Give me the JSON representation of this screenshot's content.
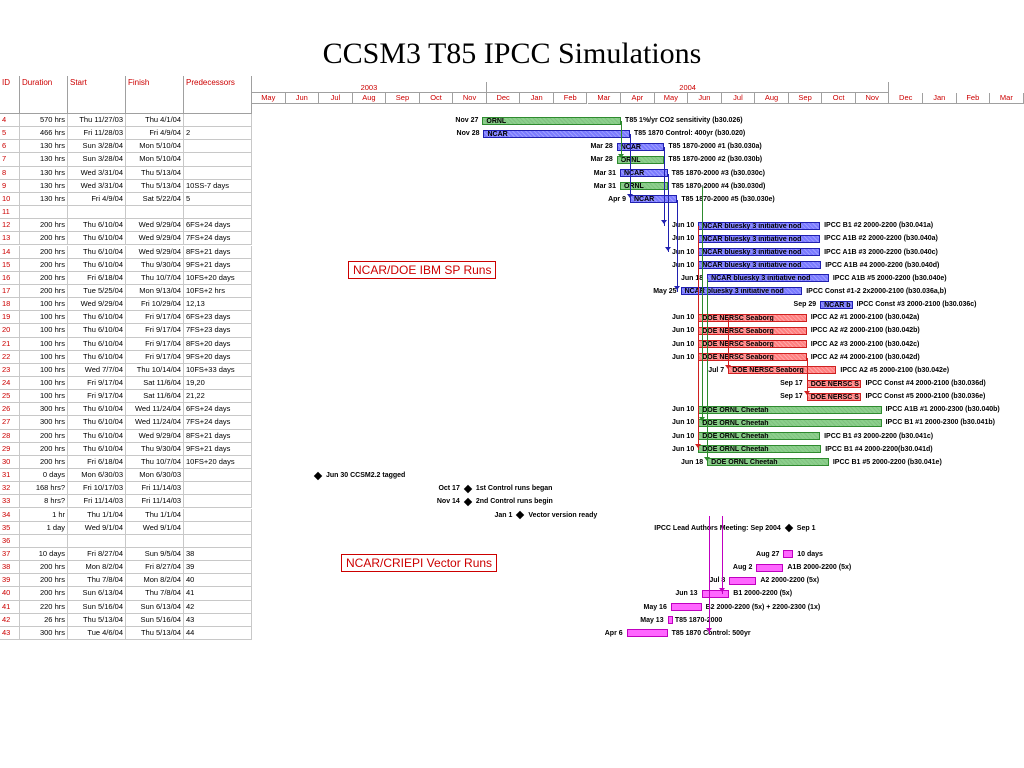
{
  "title": "CCSM3 T85 IPCC Simulations",
  "table": {
    "headers": [
      "ID",
      "Duration",
      "Start",
      "Finish",
      "Predecessors"
    ],
    "rows": [
      {
        "id": "4",
        "dur": "570 hrs",
        "start": "Thu 11/27/03",
        "finish": "Thu 4/1/04",
        "pred": ""
      },
      {
        "id": "5",
        "dur": "466 hrs",
        "start": "Fri 11/28/03",
        "finish": "Fri 4/9/04",
        "pred": "2"
      },
      {
        "id": "6",
        "dur": "130 hrs",
        "start": "Sun 3/28/04",
        "finish": "Mon 5/10/04",
        "pred": ""
      },
      {
        "id": "7",
        "dur": "130 hrs",
        "start": "Sun 3/28/04",
        "finish": "Mon 5/10/04",
        "pred": ""
      },
      {
        "id": "8",
        "dur": "130 hrs",
        "start": "Wed 3/31/04",
        "finish": "Thu 5/13/04",
        "pred": ""
      },
      {
        "id": "9",
        "dur": "130 hrs",
        "start": "Wed 3/31/04",
        "finish": "Thu 5/13/04",
        "pred": "10SS-7 days"
      },
      {
        "id": "10",
        "dur": "130 hrs",
        "start": "Fri 4/9/04",
        "finish": "Sat 5/22/04",
        "pred": "5"
      },
      {
        "id": "11",
        "dur": "",
        "start": "",
        "finish": "",
        "pred": ""
      },
      {
        "id": "12",
        "dur": "200 hrs",
        "start": "Thu 6/10/04",
        "finish": "Wed 9/29/04",
        "pred": "6FS+24 days"
      },
      {
        "id": "13",
        "dur": "200 hrs",
        "start": "Thu 6/10/04",
        "finish": "Wed 9/29/04",
        "pred": "7FS+24 days"
      },
      {
        "id": "14",
        "dur": "200 hrs",
        "start": "Thu 6/10/04",
        "finish": "Wed 9/29/04",
        "pred": "8FS+21 days"
      },
      {
        "id": "15",
        "dur": "200 hrs",
        "start": "Thu 6/10/04",
        "finish": "Thu 9/30/04",
        "pred": "9FS+21 days"
      },
      {
        "id": "16",
        "dur": "200 hrs",
        "start": "Fri 6/18/04",
        "finish": "Thu 10/7/04",
        "pred": "10FS+20 days"
      },
      {
        "id": "17",
        "dur": "200 hrs",
        "start": "Tue 5/25/04",
        "finish": "Mon 9/13/04",
        "pred": "10FS+2 hrs"
      },
      {
        "id": "18",
        "dur": "100 hrs",
        "start": "Wed 9/29/04",
        "finish": "Fri 10/29/04",
        "pred": "12,13"
      },
      {
        "id": "19",
        "dur": "100 hrs",
        "start": "Thu 6/10/04",
        "finish": "Fri 9/17/04",
        "pred": "6FS+23 days"
      },
      {
        "id": "20",
        "dur": "100 hrs",
        "start": "Thu 6/10/04",
        "finish": "Fri 9/17/04",
        "pred": "7FS+23 days"
      },
      {
        "id": "21",
        "dur": "100 hrs",
        "start": "Thu 6/10/04",
        "finish": "Fri 9/17/04",
        "pred": "8FS+20 days"
      },
      {
        "id": "22",
        "dur": "100 hrs",
        "start": "Thu 6/10/04",
        "finish": "Fri 9/17/04",
        "pred": "9FS+20 days"
      },
      {
        "id": "23",
        "dur": "100 hrs",
        "start": "Wed 7/7/04",
        "finish": "Thu 10/14/04",
        "pred": "10FS+33 days"
      },
      {
        "id": "24",
        "dur": "100 hrs",
        "start": "Fri 9/17/04",
        "finish": "Sat 11/6/04",
        "pred": "19,20"
      },
      {
        "id": "25",
        "dur": "100 hrs",
        "start": "Fri 9/17/04",
        "finish": "Sat 11/6/04",
        "pred": "21,22"
      },
      {
        "id": "26",
        "dur": "300 hrs",
        "start": "Thu 6/10/04",
        "finish": "Wed 11/24/04",
        "pred": "6FS+24 days"
      },
      {
        "id": "27",
        "dur": "300 hrs",
        "start": "Thu 6/10/04",
        "finish": "Wed 11/24/04",
        "pred": "7FS+24 days"
      },
      {
        "id": "28",
        "dur": "200 hrs",
        "start": "Thu 6/10/04",
        "finish": "Wed 9/29/04",
        "pred": "8FS+21 days"
      },
      {
        "id": "29",
        "dur": "200 hrs",
        "start": "Thu 6/10/04",
        "finish": "Thu 9/30/04",
        "pred": "9FS+21 days"
      },
      {
        "id": "30",
        "dur": "200 hrs",
        "start": "Fri 6/18/04",
        "finish": "Thu 10/7/04",
        "pred": "10FS+20 days"
      },
      {
        "id": "31",
        "dur": "0 days",
        "start": "Mon 6/30/03",
        "finish": "Mon 6/30/03",
        "pred": ""
      },
      {
        "id": "32",
        "dur": "168 hrs?",
        "start": "Fri 10/17/03",
        "finish": "Fri 11/14/03",
        "pred": ""
      },
      {
        "id": "33",
        "dur": "8 hrs?",
        "start": "Fri 11/14/03",
        "finish": "Fri 11/14/03",
        "pred": ""
      },
      {
        "id": "34",
        "dur": "1 hr",
        "start": "Thu 1/1/04",
        "finish": "Thu 1/1/04",
        "pred": ""
      },
      {
        "id": "35",
        "dur": "1 day",
        "start": "Wed 9/1/04",
        "finish": "Wed 9/1/04",
        "pred": ""
      },
      {
        "id": "36",
        "dur": "",
        "start": "",
        "finish": "",
        "pred": ""
      },
      {
        "id": "37",
        "dur": "10 days",
        "start": "Fri 8/27/04",
        "finish": "Sun 9/5/04",
        "pred": "38"
      },
      {
        "id": "38",
        "dur": "200 hrs",
        "start": "Mon 8/2/04",
        "finish": "Fri 8/27/04",
        "pred": "39"
      },
      {
        "id": "39",
        "dur": "200 hrs",
        "start": "Thu 7/8/04",
        "finish": "Mon 8/2/04",
        "pred": "40"
      },
      {
        "id": "40",
        "dur": "200 hrs",
        "start": "Sun 6/13/04",
        "finish": "Thu 7/8/04",
        "pred": "41"
      },
      {
        "id": "41",
        "dur": "220 hrs",
        "start": "Sun 5/16/04",
        "finish": "Sun 6/13/04",
        "pred": "42"
      },
      {
        "id": "42",
        "dur": "26 hrs",
        "start": "Thu 5/13/04",
        "finish": "Sun 5/16/04",
        "pred": "43"
      },
      {
        "id": "43",
        "dur": "300 hrs",
        "start": "Tue 4/6/04",
        "finish": "Thu 5/13/04",
        "pred": "44"
      }
    ]
  },
  "timeline": {
    "years": [
      {
        "label": "2003",
        "months": 7
      },
      {
        "label": "2004",
        "months": 12
      }
    ],
    "months": [
      "May",
      "Jun",
      "Jul",
      "Aug",
      "Sep",
      "Oct",
      "Nov",
      "Dec",
      "Jan",
      "Feb",
      "Mar",
      "Apr",
      "May",
      "Jun",
      "Jul",
      "Aug",
      "Sep",
      "Oct",
      "Nov",
      "Dec",
      "Jan",
      "Feb",
      "Mar"
    ],
    "start_year": 2003,
    "start_month": 5
  },
  "callouts": {
    "ibm": "NCAR/DOE IBM SP Runs",
    "vector": "NCAR/CRIEPI Vector Runs"
  },
  "colors": {
    "green": "#8cd08c",
    "blue": "#7b7bff",
    "red": "#ff8080",
    "pink": "#ff66ff",
    "id_text": "#cc0000"
  },
  "gantt": [
    {
      "row": 0,
      "type": "bar",
      "start": "2003-11-27",
      "end": "2004-04-01",
      "color": "green",
      "inside": "ORNL",
      "left": "Nov 27",
      "right": "T85 1%/yr CO2 sensitivity (b30.026)"
    },
    {
      "row": 1,
      "type": "bar",
      "start": "2003-11-28",
      "end": "2004-04-09",
      "color": "blue",
      "inside": "NCAR",
      "left": "Nov 28",
      "right": "T85 1870 Control: 400yr (b30.020)"
    },
    {
      "row": 2,
      "type": "bar",
      "start": "2004-03-28",
      "end": "2004-05-10",
      "color": "blue",
      "inside": "NCAR",
      "left": "Mar 28",
      "right": "T85 1870-2000 #1 (b30.030a)"
    },
    {
      "row": 3,
      "type": "bar",
      "start": "2004-03-28",
      "end": "2004-05-10",
      "color": "green",
      "inside": "ORNL",
      "left": "Mar 28",
      "right": "T85 1870-2000 #2 (b30.030b)"
    },
    {
      "row": 4,
      "type": "bar",
      "start": "2004-03-31",
      "end": "2004-05-13",
      "color": "blue",
      "inside": "NCAR",
      "left": "Mar 31",
      "right": "T85 1870-2000 #3  (b30.030c)"
    },
    {
      "row": 5,
      "type": "bar",
      "start": "2004-03-31",
      "end": "2004-05-13",
      "color": "green",
      "inside": "ORNL",
      "left": "Mar 31",
      "right": "T85 1870-2000 #4 (b30.030d)"
    },
    {
      "row": 6,
      "type": "bar",
      "start": "2004-04-09",
      "end": "2004-05-22",
      "color": "blue",
      "inside": "NCAR",
      "left": "Apr 9",
      "right": "T85 1870-2000 #5 (b30.030e)"
    },
    {
      "row": 8,
      "type": "bar",
      "start": "2004-06-10",
      "end": "2004-09-29",
      "color": "blue",
      "inside": "NCAR bluesky 3 initiative nod",
      "left": "Jun 10",
      "right": "IPCC B1    #2  2000-2200 (b30.041a)"
    },
    {
      "row": 9,
      "type": "bar",
      "start": "2004-06-10",
      "end": "2004-09-29",
      "color": "blue",
      "inside": "NCAR bluesky 3 initiative nod",
      "left": "Jun 10",
      "right": "IPCC A1B #2 2000-2200 (b30.040a)"
    },
    {
      "row": 10,
      "type": "bar",
      "start": "2004-06-10",
      "end": "2004-09-29",
      "color": "blue",
      "inside": "NCAR bluesky 3 initiative nod",
      "left": "Jun 10",
      "right": "IPCC A1B #3 2000-2200 (b30.040c)"
    },
    {
      "row": 11,
      "type": "bar",
      "start": "2004-06-10",
      "end": "2004-09-30",
      "color": "blue",
      "inside": "NCAR bluesky 3 initiative nod",
      "left": "Jun 10",
      "right": "IPCC A1B #4 2000-2200 (b30.040d)"
    },
    {
      "row": 12,
      "type": "bar",
      "start": "2004-06-18",
      "end": "2004-10-07",
      "color": "blue",
      "inside": "NCAR bluesky 3 initiative nod",
      "left": "Jun 18",
      "right": "IPCC A1B #5 2000-2200 (b30.040e)"
    },
    {
      "row": 13,
      "type": "bar",
      "start": "2004-05-25",
      "end": "2004-09-13",
      "color": "blue",
      "inside": "NCAR bluesky 3 initiative nod",
      "left": "May 25",
      "right": "IPCC Const #1-2  2x2000-2100 (b30.036a,b)"
    },
    {
      "row": 14,
      "type": "bar",
      "start": "2004-09-29",
      "end": "2004-10-29",
      "color": "blue",
      "inside": "NCAR b",
      "left": "Sep 29",
      "right": "IPCC Const #3  2000-2100 (b30.036c)"
    },
    {
      "row": 15,
      "type": "bar",
      "start": "2004-06-10",
      "end": "2004-09-17",
      "color": "red",
      "inside": "DOE NERSC Seaborg",
      "left": "Jun 10",
      "right": "IPCC A2  #1 2000-2100 (b30.042a)"
    },
    {
      "row": 16,
      "type": "bar",
      "start": "2004-06-10",
      "end": "2004-09-17",
      "color": "red",
      "inside": "DOE NERSC Seaborg",
      "left": "Jun 10",
      "right": "IPCC A2  #2 2000-2100 (b30.042b)"
    },
    {
      "row": 17,
      "type": "bar",
      "start": "2004-06-10",
      "end": "2004-09-17",
      "color": "red",
      "inside": "DOE NERSC Seaborg",
      "left": "Jun 10",
      "right": "IPCC A2  #3 2000-2100 (b30.042c)"
    },
    {
      "row": 18,
      "type": "bar",
      "start": "2004-06-10",
      "end": "2004-09-17",
      "color": "red",
      "inside": "DOE NERSC Seaborg",
      "left": "Jun 10",
      "right": "IPCC A2  #4 2000-2100 (b30.042d)"
    },
    {
      "row": 19,
      "type": "bar",
      "start": "2004-07-07",
      "end": "2004-10-14",
      "color": "red",
      "inside": "DOE NERSC Seaborg",
      "left": "Jul 7",
      "right": "IPCC A2  #5 2000-2100 (b30.042e)"
    },
    {
      "row": 20,
      "type": "bar",
      "start": "2004-09-17",
      "end": "2004-11-06",
      "color": "red",
      "inside": "DOE NERSC S",
      "left": "Sep 17",
      "right": "IPCC Const #4  2000-2100 (b30.036d)"
    },
    {
      "row": 21,
      "type": "bar",
      "start": "2004-09-17",
      "end": "2004-11-06",
      "color": "red",
      "inside": "DOE NERSC S",
      "left": "Sep 17",
      "right": "IPCC Const #5  2000-2100 (b30.036e)"
    },
    {
      "row": 22,
      "type": "bar",
      "start": "2004-06-10",
      "end": "2004-11-24",
      "color": "green",
      "inside": "DOE ORNL Cheetah",
      "left": "Jun 10",
      "right": "IPCC A1B #1 2000-2300 (b30.040b)"
    },
    {
      "row": 23,
      "type": "bar",
      "start": "2004-06-10",
      "end": "2004-11-24",
      "color": "green",
      "inside": "DOE ORNL Cheetah",
      "left": "Jun 10",
      "right": "IPCC B1 #1 2000-2300 (b30.041b)"
    },
    {
      "row": 24,
      "type": "bar",
      "start": "2004-06-10",
      "end": "2004-09-29",
      "color": "green",
      "inside": "DOE ORNL Cheetah",
      "left": "Jun 10",
      "right": "IPCC B1 #3 2000-2200 (b30.041c)"
    },
    {
      "row": 25,
      "type": "bar",
      "start": "2004-06-10",
      "end": "2004-09-30",
      "color": "green",
      "inside": "DOE ORNL Cheetah",
      "left": "Jun 10",
      "right": "IPCC B1 #4 2000-2200(b30.041d)"
    },
    {
      "row": 26,
      "type": "bar",
      "start": "2004-06-18",
      "end": "2004-10-07",
      "color": "green",
      "inside": "DOE ORNL Cheetah",
      "left": "Jun 18",
      "right": "IPCC B1 #5 2000-2200 (b30.041e)"
    },
    {
      "row": 27,
      "type": "milestone",
      "date": "2003-06-30",
      "right": "Jun 30  CCSM2.2 tagged"
    },
    {
      "row": 28,
      "type": "milestone",
      "date": "2003-11-14",
      "left": "Oct 17",
      "right": "1st Control runs began"
    },
    {
      "row": 29,
      "type": "milestone",
      "date": "2003-11-14",
      "left": "Nov 14",
      "right": "2nd Control runs begin"
    },
    {
      "row": 30,
      "type": "milestone",
      "date": "2004-01-01",
      "left": "Jan 1",
      "right": "Vector version ready"
    },
    {
      "row": 31,
      "type": "milestone",
      "date": "2004-09-01",
      "left": "IPCC Lead Authors Meeting: Sep 2004",
      "right": "Sep 1"
    },
    {
      "row": 33,
      "type": "bar",
      "start": "2004-08-27",
      "end": "2004-09-05",
      "color": "pink",
      "inside": "",
      "left": "Aug 27",
      "right": "10 days"
    },
    {
      "row": 34,
      "type": "bar",
      "start": "2004-08-02",
      "end": "2004-08-27",
      "color": "pink",
      "inside": "",
      "left": "Aug 2",
      "right": "A1B 2000-2200 (5x)"
    },
    {
      "row": 35,
      "type": "bar",
      "start": "2004-07-08",
      "end": "2004-08-02",
      "color": "pink",
      "inside": "",
      "left": "Jul 8",
      "right": "A2 2000-2200 (5x)"
    },
    {
      "row": 36,
      "type": "bar",
      "start": "2004-06-13",
      "end": "2004-07-08",
      "color": "pink",
      "inside": "",
      "left": "Jun 13",
      "right": "B1 2000-2200 (5x)"
    },
    {
      "row": 37,
      "type": "bar",
      "start": "2004-05-16",
      "end": "2004-06-13",
      "color": "pink",
      "inside": "",
      "left": "May 16",
      "right": "B2 2000-2200 (5x) + 2200-2300 (1x)"
    },
    {
      "row": 38,
      "type": "bar",
      "start": "2004-05-13",
      "end": "2004-05-16",
      "color": "pink",
      "inside": "",
      "left": "May 13",
      "right": "T85 1870-2000"
    },
    {
      "row": 39,
      "type": "bar",
      "start": "2004-04-06",
      "end": "2004-05-13",
      "color": "pink",
      "inside": "",
      "left": "Apr 6",
      "right": "T85 1870 Control: 500yr"
    }
  ]
}
